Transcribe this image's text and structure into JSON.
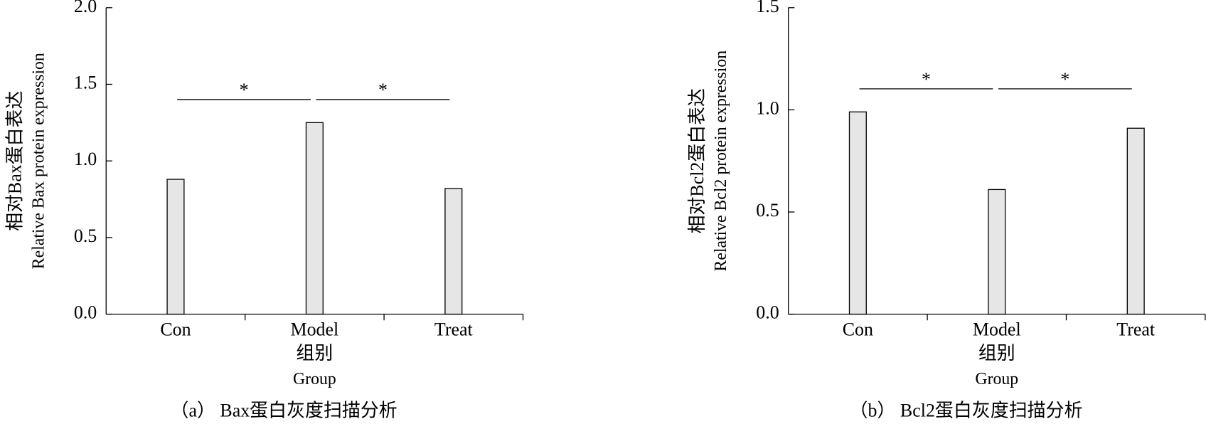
{
  "chart_data": [
    {
      "type": "bar",
      "caption": "（a） Bax蛋白灰度扫描分析",
      "y_label_zh": "相对Bax蛋白表达",
      "y_label_en": "Relative Bax protein expression",
      "x_label_zh": "组别",
      "x_label_en": "Group",
      "categories": [
        "Con",
        "Model",
        "Treat"
      ],
      "values": [
        0.88,
        1.25,
        0.82
      ],
      "color": "#e6e6e6",
      "ylim": [
        0,
        2
      ],
      "yticks": [
        {
          "value": 0,
          "label": "0.0"
        },
        {
          "value": 0.5,
          "label": "0.5"
        },
        {
          "value": 1,
          "label": "1.0"
        },
        {
          "value": 1.5,
          "label": "1.5"
        },
        {
          "value": 2,
          "label": "2.0"
        }
      ],
      "annotations": [
        "*",
        "*"
      ]
    },
    {
      "type": "bar",
      "caption": "（b） Bcl2蛋白灰度扫描分析",
      "y_label_zh": "相对Bcl2蛋白表达",
      "y_label_en": "Relative Bcl2 protein expression",
      "x_label_zh": "组别",
      "x_label_en": "Group",
      "categories": [
        "Con",
        "Model",
        "Treat"
      ],
      "values": [
        0.99,
        0.61,
        0.91
      ],
      "color": "#e6e6e6",
      "ylim": [
        0,
        1.5
      ],
      "yticks": [
        {
          "value": 0,
          "label": "0.0"
        },
        {
          "value": 0.5,
          "label": "0.5"
        },
        {
          "value": 1,
          "label": "1.0"
        },
        {
          "value": 1.5,
          "label": "1.5"
        }
      ],
      "annotations": [
        "*",
        "*"
      ]
    }
  ]
}
